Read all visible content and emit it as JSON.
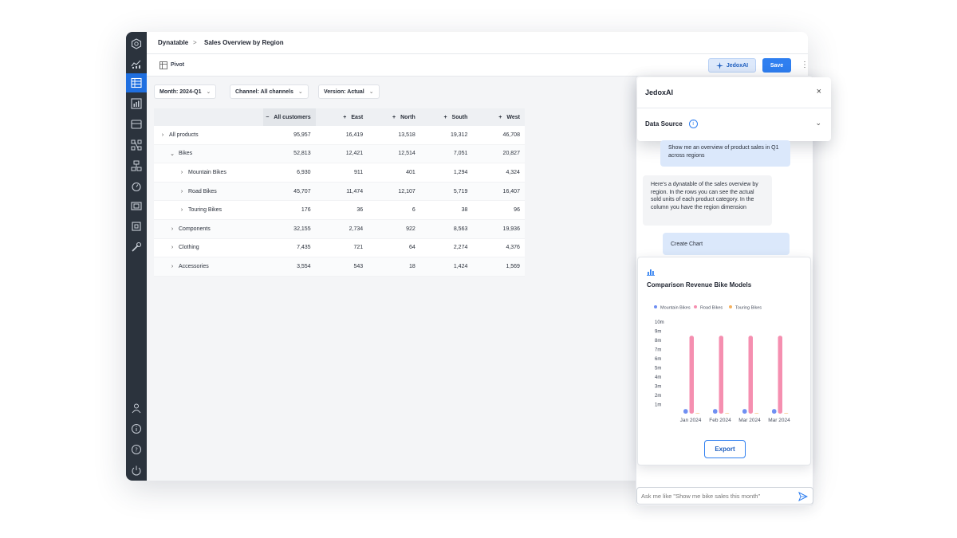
{
  "breadcrumb": {
    "root": "Dynatable",
    "separator": ">",
    "current": "Sales Overview by Region"
  },
  "toolbar": {
    "pivot_label": "Pivot",
    "jedox_label": "JedoxAI",
    "save_label": "Save",
    "more": "⋮"
  },
  "filters": [
    {
      "label": "Month: 2024-Q1"
    },
    {
      "label": "Channel: All channels"
    },
    {
      "label": "Version: Actual"
    }
  ],
  "table": {
    "headers": [
      "All customers",
      "East",
      "North",
      "South",
      "West"
    ],
    "header_toggles": [
      "−",
      "+",
      "+",
      "+",
      "+"
    ],
    "rows": [
      {
        "toggle": "›",
        "label": "All products",
        "values": [
          "95,957",
          "16,419",
          "13,518",
          "19,312",
          "46,708"
        ]
      },
      {
        "toggle": "⌄",
        "label": "Bikes",
        "values": [
          "52,813",
          "12,421",
          "12,514",
          "7,051",
          "20,827"
        ]
      },
      {
        "toggle": "›",
        "label": "Mountain Bikes",
        "values": [
          "6,930",
          "911",
          "401",
          "1,294",
          "4,324"
        ]
      },
      {
        "toggle": "›",
        "label": "Road Bikes",
        "values": [
          "45,707",
          "11,474",
          "12,107",
          "5,719",
          "16,407"
        ]
      },
      {
        "toggle": "›",
        "label": "Touring Bikes",
        "values": [
          "176",
          "36",
          "6",
          "38",
          "96"
        ]
      },
      {
        "toggle": "›",
        "label": "Components",
        "values": [
          "32,155",
          "2,734",
          "922",
          "8,563",
          "19,936"
        ]
      },
      {
        "toggle": "›",
        "label": "Clothing",
        "values": [
          "7,435",
          "721",
          "64",
          "2,274",
          "4,376"
        ]
      },
      {
        "toggle": "›",
        "label": "Accessories",
        "values": [
          "3,554",
          "543",
          "18",
          "1,424",
          "1,569"
        ]
      }
    ]
  },
  "assistant": {
    "title": "JedoxAI",
    "close": "×",
    "data_source_label": "Data Source",
    "info": "i",
    "chevron": "⌄",
    "messages": {
      "user_1": "Show me an overview of product sales in Q1 across regions",
      "bot_1": "Here's a dynatable of the sales overview by region. In the rows you can see the actual sold units of each product category. In the column you have the region dimension",
      "user_2": "Create Chart"
    },
    "export_label": "Export",
    "input_placeholder": "Ask me like \"Show me bike sales this month\""
  },
  "colors": {
    "accent": "#2f7ff0",
    "sidebar": "#2b333d",
    "mountain": "#6f8ff2",
    "road": "#f58fb0",
    "touring": "#f5b25f"
  },
  "chart_data": {
    "type": "bar",
    "title": "Comparison Revenue Bike Models",
    "categories": [
      "Jan 2024",
      "Feb 2024",
      "Mar 2024",
      "Mar 2024"
    ],
    "series": [
      {
        "name": "Mountain Bikes",
        "values": [
          0.5,
          0.5,
          0.5,
          0.5
        ]
      },
      {
        "name": "Road Bikes",
        "values": [
          8.5,
          8.5,
          8.5,
          8.5
        ]
      },
      {
        "name": "Touring Bikes",
        "values": [
          0.02,
          0.02,
          0.02,
          0.02
        ]
      }
    ],
    "yticks": [
      "1m",
      "2m",
      "3m",
      "4m",
      "5m",
      "6m",
      "7m",
      "8m",
      "9m",
      "10m"
    ],
    "ylim": [
      0,
      10
    ],
    "legend": "top"
  }
}
